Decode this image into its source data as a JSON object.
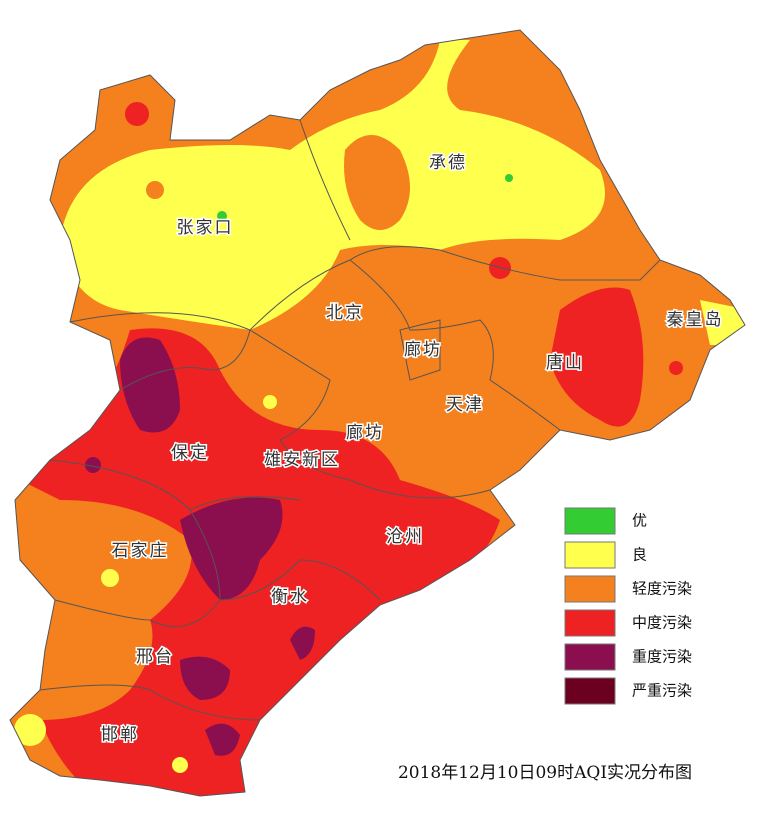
{
  "title": "2018年12月10日09时AQI实况分布图",
  "cities": [
    {
      "label": "承德"
    },
    {
      "label": "张家口"
    },
    {
      "label": "北京"
    },
    {
      "label": "廊坊"
    },
    {
      "label": "秦皇岛"
    },
    {
      "label": "唐山"
    },
    {
      "label": "天津"
    },
    {
      "label": "廊坊"
    },
    {
      "label": "保定"
    },
    {
      "label": "雄安新区"
    },
    {
      "label": "沧州"
    },
    {
      "label": "石家庄"
    },
    {
      "label": "衡水"
    },
    {
      "label": "邢台"
    },
    {
      "label": "邯郸"
    }
  ],
  "legend": [
    {
      "label": "优",
      "color": "#33cc33"
    },
    {
      "label": "良",
      "color": "#ffff4d"
    },
    {
      "label": "轻度污染",
      "color": "#f5801e"
    },
    {
      "label": "中度污染",
      "color": "#ee2222"
    },
    {
      "label": "重度污染",
      "color": "#8b0f4f"
    },
    {
      "label": "严重污染",
      "color": "#6b0020"
    }
  ]
}
